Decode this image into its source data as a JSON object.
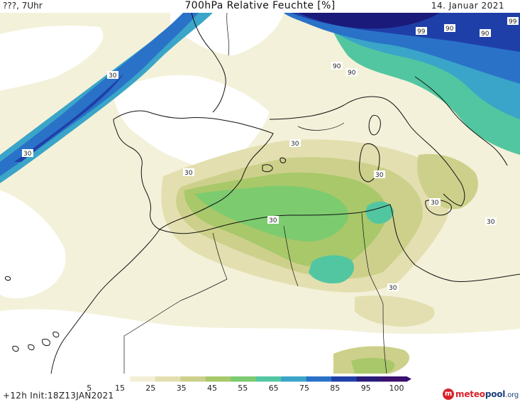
{
  "header": {
    "left_text": "???, 7Uhr",
    "title": "700hPa Relative Feuchte [%]",
    "date": "14. Januar 2021"
  },
  "footer": {
    "init_text": "+12h Init:18Z13JAN2021",
    "logo": {
      "icon": "meteopool-logo-icon",
      "brand_part1": "meteo",
      "brand_part2": "pool",
      "tld": ".org"
    }
  },
  "colorbar": {
    "labels": [
      "5",
      "15",
      "25",
      "35",
      "45",
      "55",
      "65",
      "75",
      "85",
      "95",
      "100"
    ],
    "colors": [
      "#ffffff",
      "#f2efd6",
      "#e3dfb0",
      "#cdd08a",
      "#a8c86a",
      "#7ccb6f",
      "#52c6a0",
      "#3aa5c8",
      "#2a72c8",
      "#1f3fa8",
      "#2a1a7a",
      "#3a0f6e"
    ]
  },
  "map": {
    "contour_labels": [
      "30",
      "30",
      "30",
      "30",
      "30",
      "30",
      "30",
      "30",
      "30",
      "90",
      "90",
      "90",
      "99",
      "99",
      "90"
    ],
    "palette": {
      "dry": "#ffffff",
      "light": "#f2efd6",
      "tan": "#e3dfb0",
      "olive": "#cdd08a",
      "green": "#a8c86a",
      "bright_green": "#7ccb6f",
      "teal": "#52c6a0",
      "cyan": "#3aa5c8",
      "blue": "#2a72c8",
      "dark_blue": "#1f3fa8",
      "navy": "#1a1a7a",
      "coast": "#111111"
    }
  }
}
